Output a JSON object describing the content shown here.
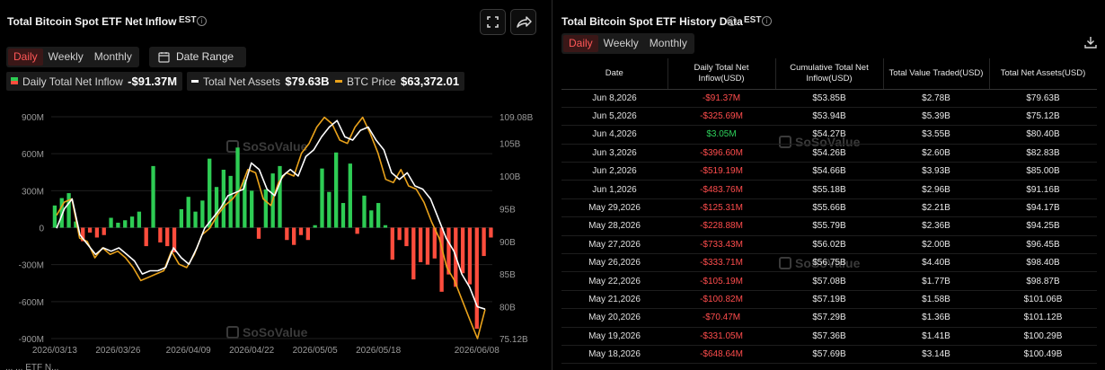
{
  "left": {
    "title": "Total Bitcoin Spot ETF Net Inflow",
    "timezone": "EST",
    "tabs": [
      {
        "label": "Daily",
        "active": true
      },
      {
        "label": "Weekly",
        "active": false
      },
      {
        "label": "Monthly",
        "active": false
      }
    ],
    "date_range_label": "Date Range",
    "legend": [
      {
        "label": "Daily Total Net Inflow",
        "value": "-$91.37M",
        "color": "#e8e8e8",
        "swatch_colors": [
          "#2ecc54",
          "#ff4d3d"
        ]
      },
      {
        "label": "Total Net Assets",
        "value": "$79.63B",
        "color": "#ffffff"
      },
      {
        "label": "BTC Price",
        "value": "$63,372.01",
        "color": "#e9a21b"
      }
    ],
    "watermark": "SoSoValue",
    "bottom_partial": "... ... ETF N..."
  },
  "chart_data": {
    "type": "bar+line",
    "left_axis_ticks": [
      "900M",
      "600M",
      "300M",
      "0",
      "-300M",
      "-600M",
      "-900M"
    ],
    "left_axis_values": [
      900,
      600,
      300,
      0,
      -300,
      -600,
      -900
    ],
    "right_axis_ticks": [
      "109.08B",
      "105B",
      "100B",
      "95B",
      "90B",
      "85B",
      "80B",
      "75.12B"
    ],
    "right_axis_values": [
      109.08,
      105,
      100,
      95,
      90,
      85,
      80,
      75.12
    ],
    "x_tick_labels": [
      "2026/03/13",
      "2026/03/26",
      "2026/04/09",
      "2026/04/22",
      "2026/05/05",
      "2026/05/18",
      "2026/06/08"
    ],
    "x_tick_indices": [
      0,
      9,
      19,
      28,
      37,
      46,
      60
    ],
    "net_inflow_millions": [
      180,
      240,
      280,
      50,
      -110,
      -40,
      -80,
      -60,
      80,
      40,
      60,
      90,
      130,
      -150,
      500,
      -120,
      -150,
      -200,
      150,
      250,
      130,
      220,
      560,
      330,
      470,
      420,
      650,
      390,
      300,
      -90,
      310,
      440,
      500,
      -100,
      -140,
      -60,
      -100,
      20,
      480,
      290,
      610,
      200,
      520,
      -50,
      260,
      140,
      200,
      20,
      -260,
      -100,
      -150,
      -420,
      -280,
      -300,
      -250,
      -520,
      -380,
      -480,
      -370,
      -460,
      -820,
      -230,
      -80
    ],
    "net_assets_billions": [
      92,
      95,
      96.5,
      91,
      89.5,
      88,
      89,
      88.5,
      89,
      88,
      87,
      85,
      85.5,
      85.5,
      86,
      89,
      87.5,
      86.5,
      89,
      92,
      93.5,
      95,
      97,
      97.5,
      98,
      102,
      101,
      98,
      97,
      100,
      101,
      100,
      103,
      104,
      106,
      107.5,
      108.5,
      106,
      105.5,
      107,
      107.5,
      105.5,
      104,
      100.5,
      99.5,
      100.5,
      98.5,
      98,
      96.5,
      93.5,
      90.5,
      88.5,
      85,
      83,
      80,
      79.63
    ],
    "btc_price_scaled": [
      94,
      96,
      96.5,
      90.5,
      90,
      87.5,
      89,
      88,
      88.5,
      87.5,
      86,
      84,
      84.5,
      85,
      85.5,
      88.5,
      86.5,
      86,
      88,
      91,
      92,
      94,
      95.5,
      96.5,
      98,
      101,
      100.5,
      96.5,
      95.5,
      99,
      100.5,
      100,
      103.5,
      105,
      107.5,
      109,
      108,
      105.5,
      105,
      107.5,
      109,
      106.5,
      103.5,
      99.5,
      99,
      101,
      98.5,
      98,
      96,
      93,
      90.5,
      86,
      84,
      81,
      78,
      75.12,
      79.6
    ],
    "colors": {
      "positive": "#2ecc54",
      "negative": "#ff4d3d",
      "net_assets": "#ffffff",
      "btc_price": "#e9a21b"
    }
  },
  "right": {
    "title": "Total Bitcoin Spot ETF History Data",
    "timezone": "EST",
    "tabs": [
      {
        "label": "Daily",
        "active": true
      },
      {
        "label": "Weekly",
        "active": false
      },
      {
        "label": "Monthly",
        "active": false
      }
    ],
    "columns": [
      "Date",
      "Daily Total Net Inflow(USD)",
      "Cumulative Total Net Inflow(USD)",
      "Total Value Traded(USD)",
      "Total Net Assets(USD)"
    ],
    "rows": [
      {
        "date": "Jun 8,2026",
        "inflow": "-$91.37M",
        "sign": "neg",
        "cumulative": "$53.85B",
        "traded": "$2.78B",
        "assets": "$79.63B"
      },
      {
        "date": "Jun 5,2026",
        "inflow": "-$325.69M",
        "sign": "neg",
        "cumulative": "$53.94B",
        "traded": "$5.39B",
        "assets": "$75.12B"
      },
      {
        "date": "Jun 4,2026",
        "inflow": "$3.05M",
        "sign": "pos",
        "cumulative": "$54.27B",
        "traded": "$3.55B",
        "assets": "$80.40B"
      },
      {
        "date": "Jun 3,2026",
        "inflow": "-$396.60M",
        "sign": "neg",
        "cumulative": "$54.26B",
        "traded": "$2.60B",
        "assets": "$82.83B"
      },
      {
        "date": "Jun 2,2026",
        "inflow": "-$519.19M",
        "sign": "neg",
        "cumulative": "$54.66B",
        "traded": "$3.93B",
        "assets": "$85.00B"
      },
      {
        "date": "Jun 1,2026",
        "inflow": "-$483.76M",
        "sign": "neg",
        "cumulative": "$55.18B",
        "traded": "$2.96B",
        "assets": "$91.16B"
      },
      {
        "date": "May 29,2026",
        "inflow": "-$125.31M",
        "sign": "neg",
        "cumulative": "$55.66B",
        "traded": "$2.21B",
        "assets": "$94.17B"
      },
      {
        "date": "May 28,2026",
        "inflow": "-$228.88M",
        "sign": "neg",
        "cumulative": "$55.79B",
        "traded": "$2.36B",
        "assets": "$94.25B"
      },
      {
        "date": "May 27,2026",
        "inflow": "-$733.43M",
        "sign": "neg",
        "cumulative": "$56.02B",
        "traded": "$2.00B",
        "assets": "$96.45B"
      },
      {
        "date": "May 26,2026",
        "inflow": "-$333.71M",
        "sign": "neg",
        "cumulative": "$56.75B",
        "traded": "$4.40B",
        "assets": "$98.40B"
      },
      {
        "date": "May 22,2026",
        "inflow": "-$105.19M",
        "sign": "neg",
        "cumulative": "$57.08B",
        "traded": "$1.77B",
        "assets": "$98.87B"
      },
      {
        "date": "May 21,2026",
        "inflow": "-$100.82M",
        "sign": "neg",
        "cumulative": "$57.19B",
        "traded": "$1.58B",
        "assets": "$101.06B"
      },
      {
        "date": "May 20,2026",
        "inflow": "-$70.47M",
        "sign": "neg",
        "cumulative": "$57.29B",
        "traded": "$1.36B",
        "assets": "$101.12B"
      },
      {
        "date": "May 19,2026",
        "inflow": "-$331.05M",
        "sign": "neg",
        "cumulative": "$57.36B",
        "traded": "$1.41B",
        "assets": "$100.29B"
      },
      {
        "date": "May 18,2026",
        "inflow": "-$648.64M",
        "sign": "neg",
        "cumulative": "$57.69B",
        "traded": "$3.14B",
        "assets": "$100.49B"
      }
    ],
    "watermark": "SoSoValue"
  }
}
